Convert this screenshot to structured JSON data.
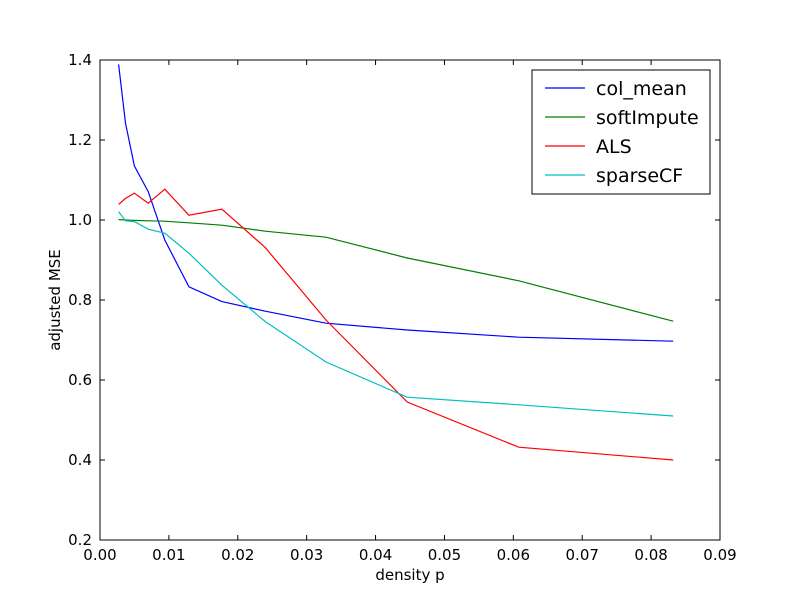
{
  "chart_data": {
    "type": "line",
    "title": "",
    "xlabel": "density p",
    "ylabel": "adjusted MSE",
    "xlim": [
      0.0,
      0.09
    ],
    "ylim": [
      0.2,
      1.4
    ],
    "grid": false,
    "legend_position": "top-right",
    "x_ticks": [
      "0.00",
      "0.01",
      "0.02",
      "0.03",
      "0.04",
      "0.05",
      "0.06",
      "0.07",
      "0.08",
      "0.09"
    ],
    "y_ticks": [
      "0.2",
      "0.4",
      "0.6",
      "0.8",
      "1.0",
      "1.2",
      "1.4"
    ],
    "x": [
      0.0027,
      0.0037,
      0.005,
      0.007,
      0.0094,
      0.0129,
      0.0177,
      0.024,
      0.0328,
      0.0446,
      0.0608,
      0.0832
    ],
    "series": [
      {
        "name": "col_mean",
        "color": "#0000ff",
        "values": [
          1.389,
          1.242,
          1.135,
          1.071,
          0.95,
          0.833,
          0.796,
          0.772,
          0.742,
          0.725,
          0.707,
          0.697
        ]
      },
      {
        "name": "softImpute",
        "color": "#008000",
        "values": [
          1.001,
          1.0,
          0.999,
          0.998,
          0.997,
          0.993,
          0.987,
          0.972,
          0.957,
          0.905,
          0.848,
          0.747
        ]
      },
      {
        "name": "ALS",
        "color": "#ff0000",
        "values": [
          1.039,
          1.054,
          1.067,
          1.042,
          1.077,
          1.012,
          1.027,
          0.931,
          0.75,
          0.545,
          0.432,
          0.4
        ]
      },
      {
        "name": "sparseCF",
        "color": "#00bfbf",
        "values": [
          1.021,
          0.998,
          0.996,
          0.977,
          0.967,
          0.917,
          0.837,
          0.746,
          0.645,
          0.557,
          0.538,
          0.51
        ]
      }
    ]
  }
}
